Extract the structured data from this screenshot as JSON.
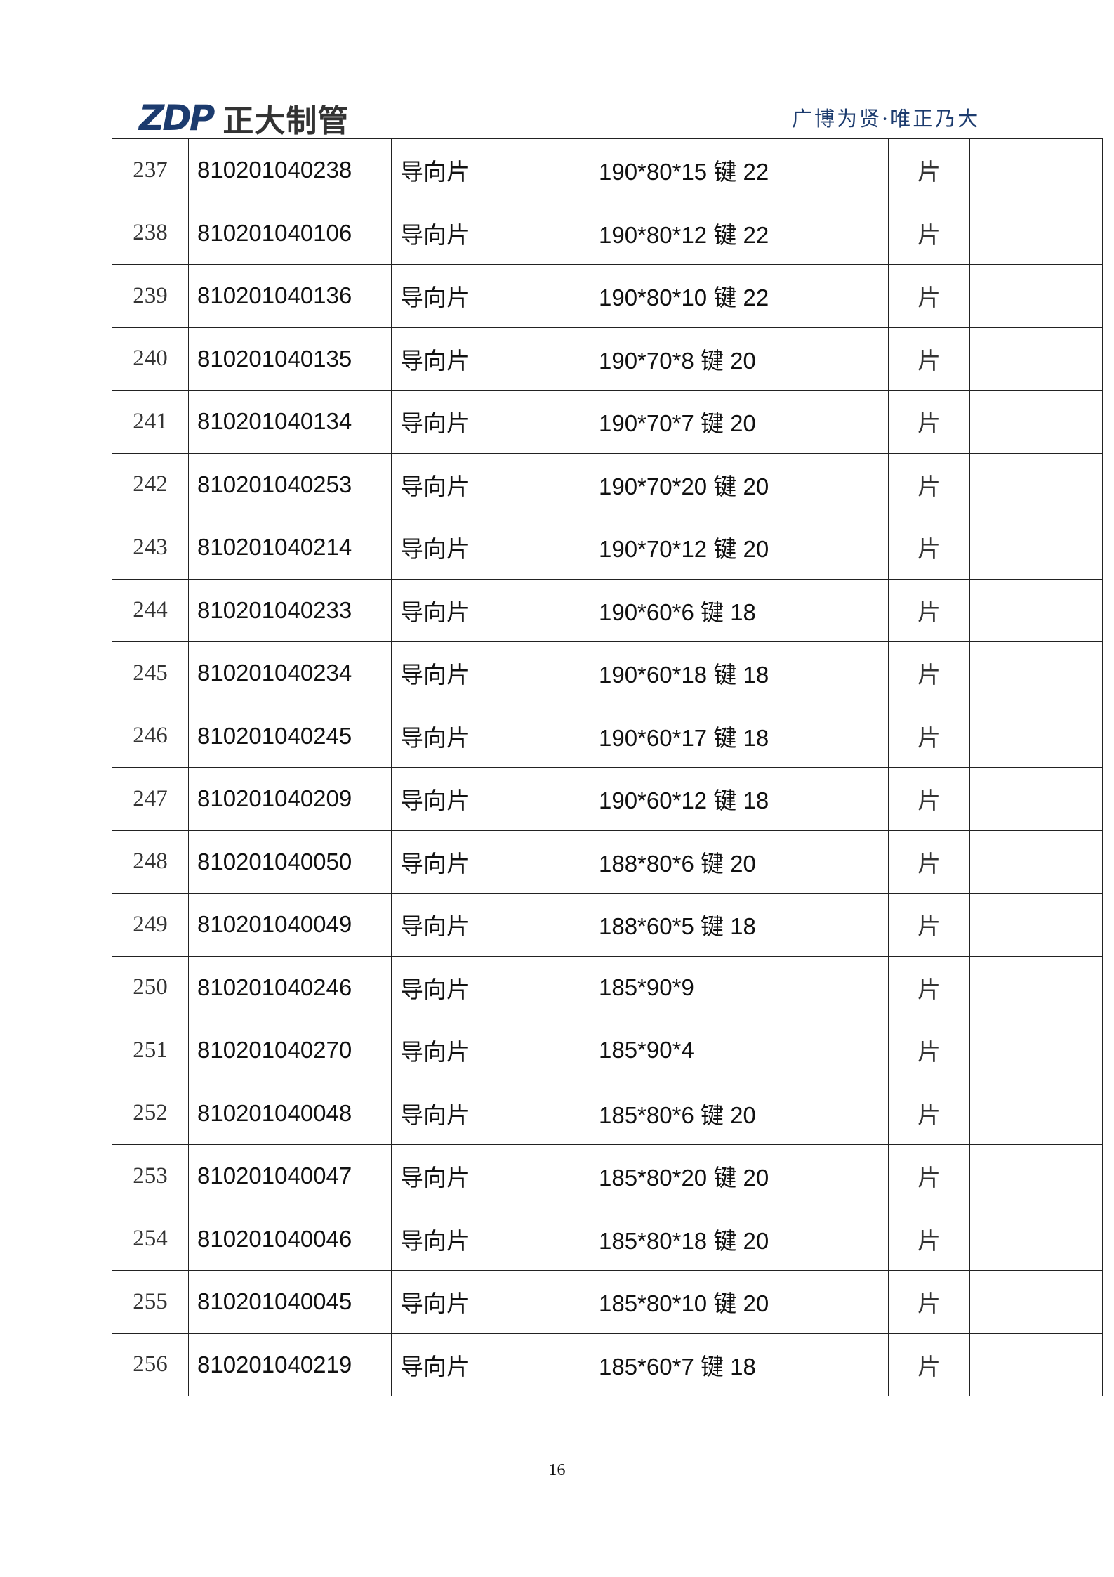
{
  "header": {
    "logo_mark": "ZDP",
    "logo_name": "正大制管",
    "slogan": "广博为贤·唯正乃大"
  },
  "rows": [
    {
      "no": "237",
      "code": "810201040238",
      "name": "导向片",
      "spec": "190*80*15 键 22",
      "unit": "片",
      "note": ""
    },
    {
      "no": "238",
      "code": "810201040106",
      "name": "导向片",
      "spec": "190*80*12 键 22",
      "unit": "片",
      "note": ""
    },
    {
      "no": "239",
      "code": "810201040136",
      "name": "导向片",
      "spec": "190*80*10 键 22",
      "unit": "片",
      "note": ""
    },
    {
      "no": "240",
      "code": "810201040135",
      "name": "导向片",
      "spec": "190*70*8 键 20",
      "unit": "片",
      "note": ""
    },
    {
      "no": "241",
      "code": "810201040134",
      "name": "导向片",
      "spec": "190*70*7 键 20",
      "unit": "片",
      "note": ""
    },
    {
      "no": "242",
      "code": "810201040253",
      "name": "导向片",
      "spec": "190*70*20 键 20",
      "unit": "片",
      "note": ""
    },
    {
      "no": "243",
      "code": "810201040214",
      "name": "导向片",
      "spec": "190*70*12 键 20",
      "unit": "片",
      "note": ""
    },
    {
      "no": "244",
      "code": "810201040233",
      "name": "导向片",
      "spec": "190*60*6 键 18",
      "unit": "片",
      "note": ""
    },
    {
      "no": "245",
      "code": "810201040234",
      "name": "导向片",
      "spec": "190*60*18 键 18",
      "unit": "片",
      "note": ""
    },
    {
      "no": "246",
      "code": "810201040245",
      "name": "导向片",
      "spec": "190*60*17 键 18",
      "unit": "片",
      "note": ""
    },
    {
      "no": "247",
      "code": "810201040209",
      "name": "导向片",
      "spec": "190*60*12 键 18",
      "unit": "片",
      "note": ""
    },
    {
      "no": "248",
      "code": "810201040050",
      "name": "导向片",
      "spec": "188*80*6 键 20",
      "unit": "片",
      "note": ""
    },
    {
      "no": "249",
      "code": "810201040049",
      "name": "导向片",
      "spec": "188*60*5 键 18",
      "unit": "片",
      "note": ""
    },
    {
      "no": "250",
      "code": "810201040246",
      "name": "导向片",
      "spec": "185*90*9",
      "unit": "片",
      "note": ""
    },
    {
      "no": "251",
      "code": "810201040270",
      "name": "导向片",
      "spec": "185*90*4",
      "unit": "片",
      "note": ""
    },
    {
      "no": "252",
      "code": "810201040048",
      "name": "导向片",
      "spec": "185*80*6 键 20",
      "unit": "片",
      "note": ""
    },
    {
      "no": "253",
      "code": "810201040047",
      "name": "导向片",
      "spec": "185*80*20 键 20",
      "unit": "片",
      "note": ""
    },
    {
      "no": "254",
      "code": "810201040046",
      "name": "导向片",
      "spec": "185*80*18 键 20",
      "unit": "片",
      "note": ""
    },
    {
      "no": "255",
      "code": "810201040045",
      "name": "导向片",
      "spec": "185*80*10 键 20",
      "unit": "片",
      "note": ""
    },
    {
      "no": "256",
      "code": "810201040219",
      "name": "导向片",
      "spec": "185*60*7 键 18",
      "unit": "片",
      "note": ""
    }
  ],
  "footer": {
    "page_number": "16"
  }
}
